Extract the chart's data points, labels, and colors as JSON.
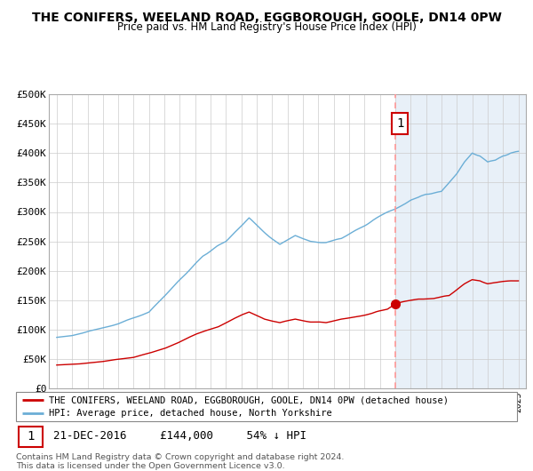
{
  "title": "THE CONIFERS, WEELAND ROAD, EGGBOROUGH, GOOLE, DN14 0PW",
  "subtitle": "Price paid vs. HM Land Registry's House Price Index (HPI)",
  "ylabel_ticks": [
    "£0",
    "£50K",
    "£100K",
    "£150K",
    "£200K",
    "£250K",
    "£300K",
    "£350K",
    "£400K",
    "£450K",
    "£500K"
  ],
  "ylim": [
    0,
    500000
  ],
  "xlim_start": 1994.5,
  "xlim_end": 2025.5,
  "sale_year": 2017.0,
  "sale_price": 144000,
  "sale_label": "1",
  "sale_annotation": "21-DEC-2016     £144,000     54% ↓ HPI",
  "legend_line1": "THE CONIFERS, WEELAND ROAD, EGGBOROUGH, GOOLE, DN14 0PW (detached house)",
  "legend_line2": "HPI: Average price, detached house, North Yorkshire",
  "footer": "Contains HM Land Registry data © Crown copyright and database right 2024.\nThis data is licensed under the Open Government Licence v3.0.",
  "red_line_color": "#cc0000",
  "blue_line_color": "#6baed6",
  "dashed_line_color": "#ff9999",
  "bg_highlight_color": "#e8f0f8",
  "background_color": "#ffffff",
  "label_box_color": "#cc0000"
}
